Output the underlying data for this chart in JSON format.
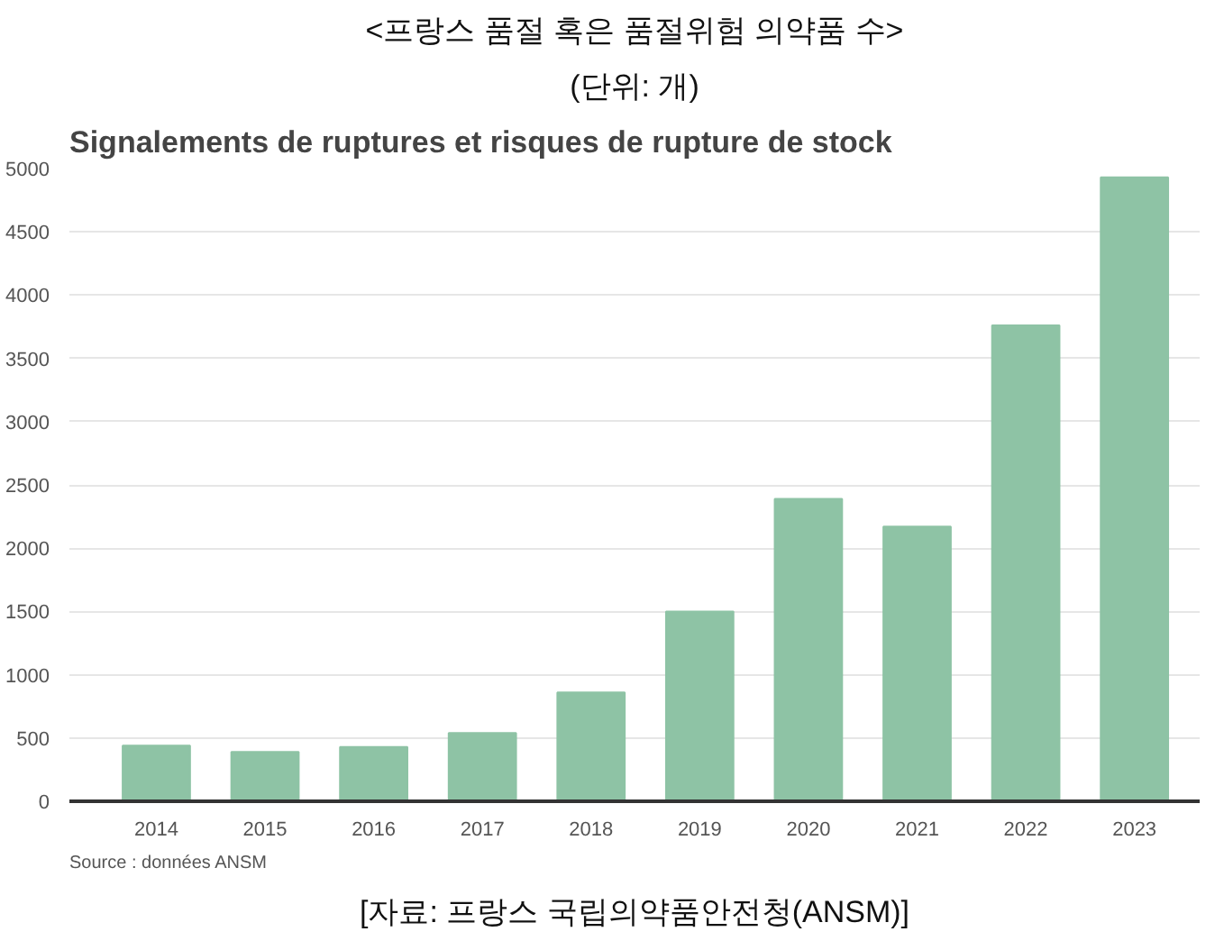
{
  "chart_data": {
    "type": "bar",
    "title": "<프랑스 품절 혹은 품절위험 의약품 수>",
    "subtitle": "(단위: 개)",
    "annotations": [
      "Signalements de ruptures et risques de rupture de stock",
      "Source : données ANSM",
      "[자료: 프랑스 국립의약품안전청(ANSM)]"
    ],
    "categories": [
      "2014",
      "2015",
      "2016",
      "2017",
      "2018",
      "2019",
      "2020",
      "2021",
      "2022",
      "2023"
    ],
    "values": [
      440,
      390,
      430,
      540,
      860,
      1500,
      2390,
      2170,
      3760,
      4930
    ],
    "color": "#8ec3a5",
    "ylim": [
      0,
      5000
    ],
    "yticks": [
      0,
      500,
      1000,
      1500,
      2000,
      2500,
      3000,
      3500,
      4000,
      4500,
      5000
    ],
    "grid": "y"
  }
}
